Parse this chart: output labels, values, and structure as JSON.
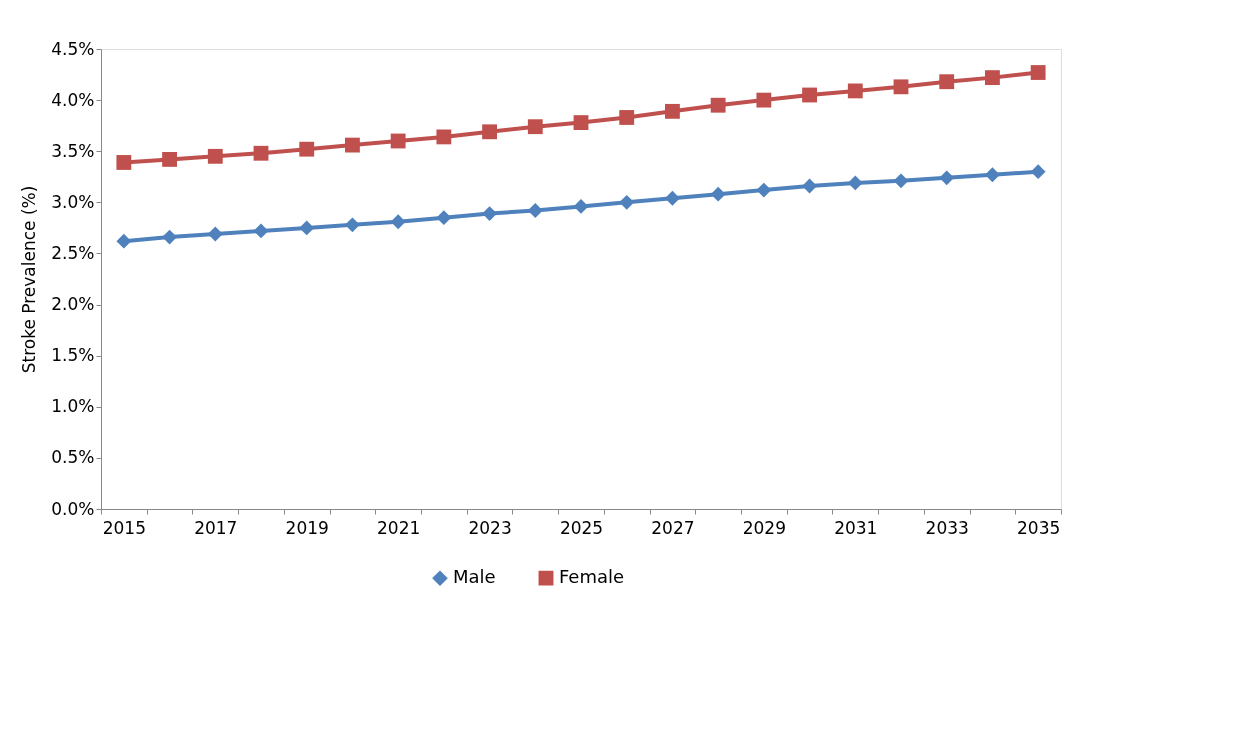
{
  "chart_data": {
    "type": "line",
    "ylabel": "Stroke Prevalence (%)",
    "categories": [
      "2015",
      null,
      "2017",
      null,
      "2019",
      null,
      "2021",
      null,
      "2023",
      null,
      "2025",
      null,
      "2027",
      null,
      "2029",
      null,
      "2031",
      null,
      "2033",
      null,
      "2035"
    ],
    "series": [
      {
        "name": "Male",
        "color": "#4f81bd",
        "marker": "diamond",
        "values": [
          2.62,
          2.66,
          2.69,
          2.72,
          2.75,
          2.78,
          2.81,
          2.85,
          2.89,
          2.92,
          2.96,
          3.0,
          3.04,
          3.08,
          3.12,
          3.16,
          3.19,
          3.21,
          3.24,
          3.27,
          3.3
        ]
      },
      {
        "name": "Female",
        "color": "#c0504d",
        "marker": "square",
        "values": [
          3.39,
          3.42,
          3.45,
          3.48,
          3.52,
          3.56,
          3.6,
          3.64,
          3.69,
          3.74,
          3.78,
          3.83,
          3.89,
          3.95,
          4.0,
          4.05,
          4.09,
          4.13,
          4.18,
          4.22,
          4.27
        ]
      }
    ],
    "ylim": [
      0,
      4.5
    ],
    "yticks": [
      {
        "value": 0,
        "label": "0.0%"
      },
      {
        "value": 0.5,
        "label": "0.5%"
      },
      {
        "value": 1,
        "label": "1.0%"
      },
      {
        "value": 1.5,
        "label": "1.5%"
      },
      {
        "value": 2,
        "label": "2.0%"
      },
      {
        "value": 2.5,
        "label": "2.5%"
      },
      {
        "value": 3,
        "label": "3.0%"
      },
      {
        "value": 3.5,
        "label": "3.5%"
      },
      {
        "value": 4,
        "label": "4.0%"
      },
      {
        "value": 4.5,
        "label": "4.5%"
      }
    ],
    "grid": false,
    "legend": "bottom",
    "line_style": "solid"
  }
}
